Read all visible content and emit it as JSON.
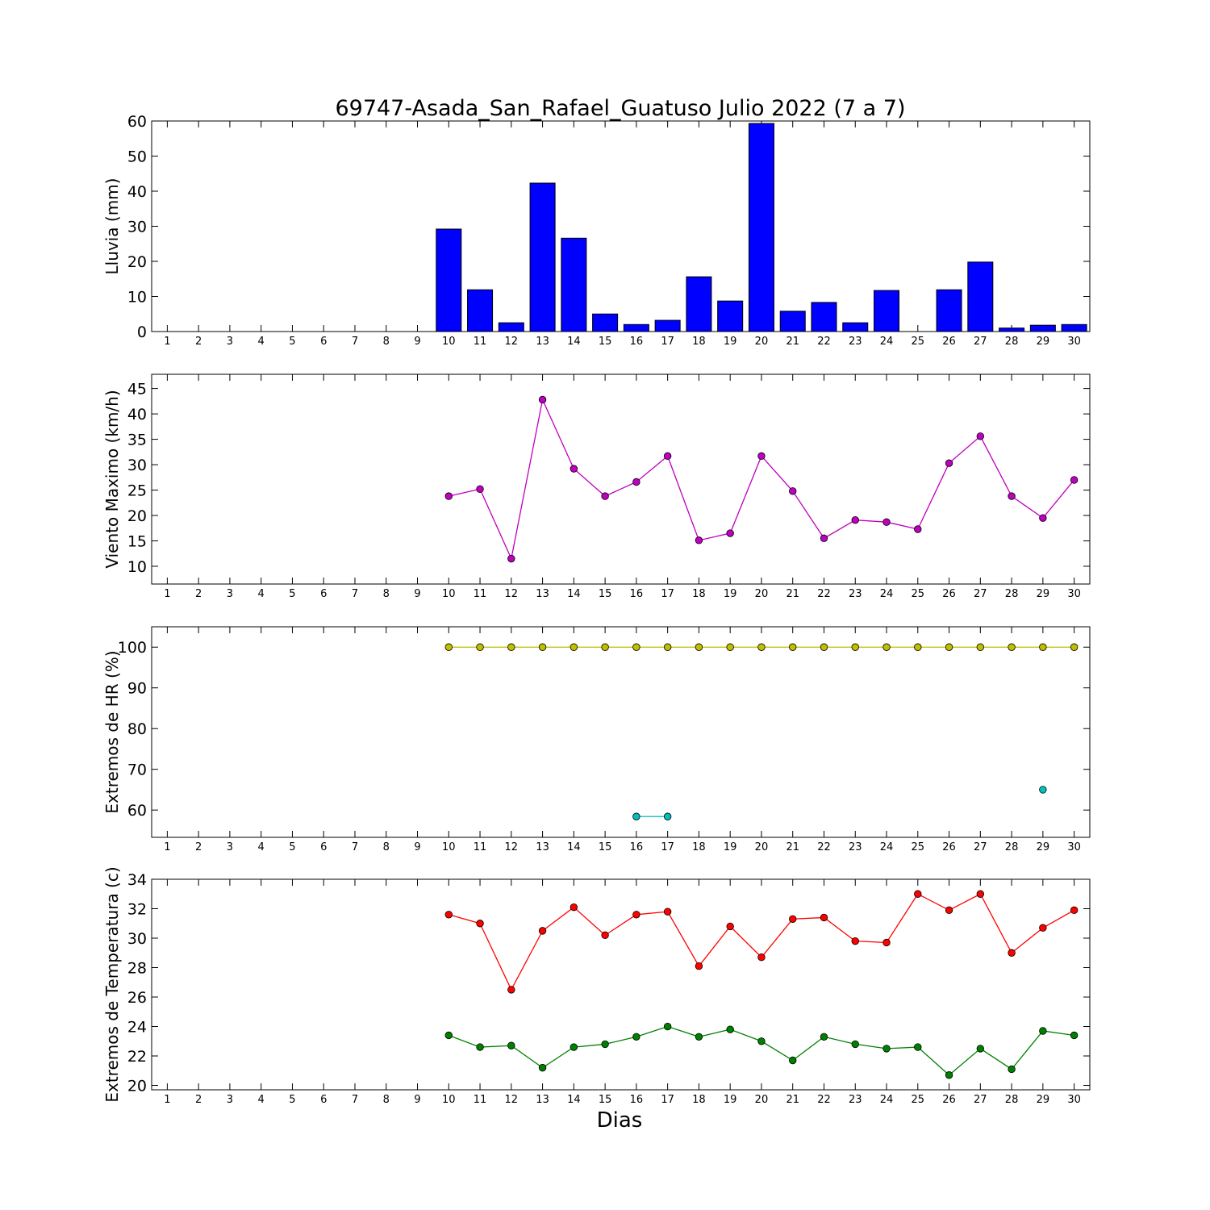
{
  "chart_data": {
    "type": "multi-panel",
    "title": "69747-Asada_San_Rafael_Guatuso Julio 2022  (7 a 7)",
    "xlabel": "Dias",
    "days": [
      1,
      2,
      3,
      4,
      5,
      6,
      7,
      8,
      9,
      10,
      11,
      12,
      13,
      14,
      15,
      16,
      17,
      18,
      19,
      20,
      21,
      22,
      23,
      24,
      25,
      26,
      27,
      28,
      29,
      30
    ],
    "panels": [
      {
        "type": "bar",
        "ylabel": "Lluvia (mm)",
        "ylim": [
          0,
          60
        ],
        "yticks": [
          0,
          10,
          20,
          30,
          40,
          50,
          60
        ],
        "color": "#0000ff",
        "series": [
          {
            "values": [
              null,
              null,
              null,
              null,
              null,
              null,
              null,
              null,
              null,
              29.2,
              11.9,
              2.5,
              42.3,
              26.6,
              5.0,
              2.0,
              3.2,
              15.6,
              8.7,
              59.3,
              5.8,
              8.3,
              2.5,
              11.7,
              0,
              11.9,
              19.8,
              1.0,
              1.8,
              2.0
            ]
          }
        ]
      },
      {
        "type": "line",
        "ylabel": "Viento Maximo (km/h)",
        "ylim": [
          6.5,
          47.8
        ],
        "yticks": [
          10,
          15,
          20,
          25,
          30,
          35,
          40,
          45
        ],
        "series": [
          {
            "color": "#bf00bf",
            "values": [
              null,
              null,
              null,
              null,
              null,
              null,
              null,
              null,
              null,
              23.8,
              25.2,
              11.5,
              42.8,
              29.2,
              23.8,
              26.6,
              31.7,
              15.1,
              16.5,
              31.7,
              24.8,
              15.5,
              19.1,
              18.7,
              17.3,
              30.3,
              35.6,
              23.8,
              19.5,
              27.0
            ]
          }
        ]
      },
      {
        "type": "line",
        "ylabel": "Extremos de HR (%)",
        "ylim": [
          53.3,
          105
        ],
        "yticks": [
          60,
          70,
          80,
          90,
          100
        ],
        "series": [
          {
            "color": "#bfbf00",
            "values": [
              null,
              null,
              null,
              null,
              null,
              null,
              null,
              null,
              null,
              100,
              100,
              100,
              100,
              100,
              100,
              100,
              100,
              100,
              100,
              100,
              100,
              100,
              100,
              100,
              100,
              100,
              100,
              100,
              100,
              100
            ]
          },
          {
            "color": "#00bfbf",
            "values": [
              null,
              null,
              null,
              null,
              null,
              null,
              null,
              null,
              null,
              null,
              null,
              null,
              null,
              null,
              null,
              58.4,
              58.4,
              null,
              null,
              null,
              null,
              null,
              null,
              null,
              null,
              null,
              null,
              null,
              65.0,
              null
            ]
          }
        ]
      },
      {
        "type": "line",
        "ylabel": "Extremos de Temperatura (c)",
        "ylim": [
          19.7,
          34
        ],
        "yticks": [
          20,
          22,
          24,
          26,
          28,
          30,
          32,
          34
        ],
        "series": [
          {
            "color": "#ff0000",
            "values": [
              null,
              null,
              null,
              null,
              null,
              null,
              null,
              null,
              null,
              31.6,
              31.0,
              26.5,
              30.5,
              32.1,
              30.2,
              31.6,
              31.8,
              28.1,
              30.8,
              28.7,
              31.3,
              31.4,
              29.8,
              29.7,
              33.0,
              31.9,
              33.0,
              29.0,
              30.7,
              31.9
            ]
          },
          {
            "color": "#008000",
            "values": [
              null,
              null,
              null,
              null,
              null,
              null,
              null,
              null,
              null,
              23.4,
              22.6,
              22.7,
              21.2,
              22.6,
              22.8,
              23.3,
              24.0,
              23.3,
              23.8,
              23.0,
              21.7,
              23.3,
              22.8,
              22.5,
              22.6,
              20.7,
              22.5,
              21.1,
              23.7,
              23.4
            ]
          }
        ]
      }
    ]
  }
}
